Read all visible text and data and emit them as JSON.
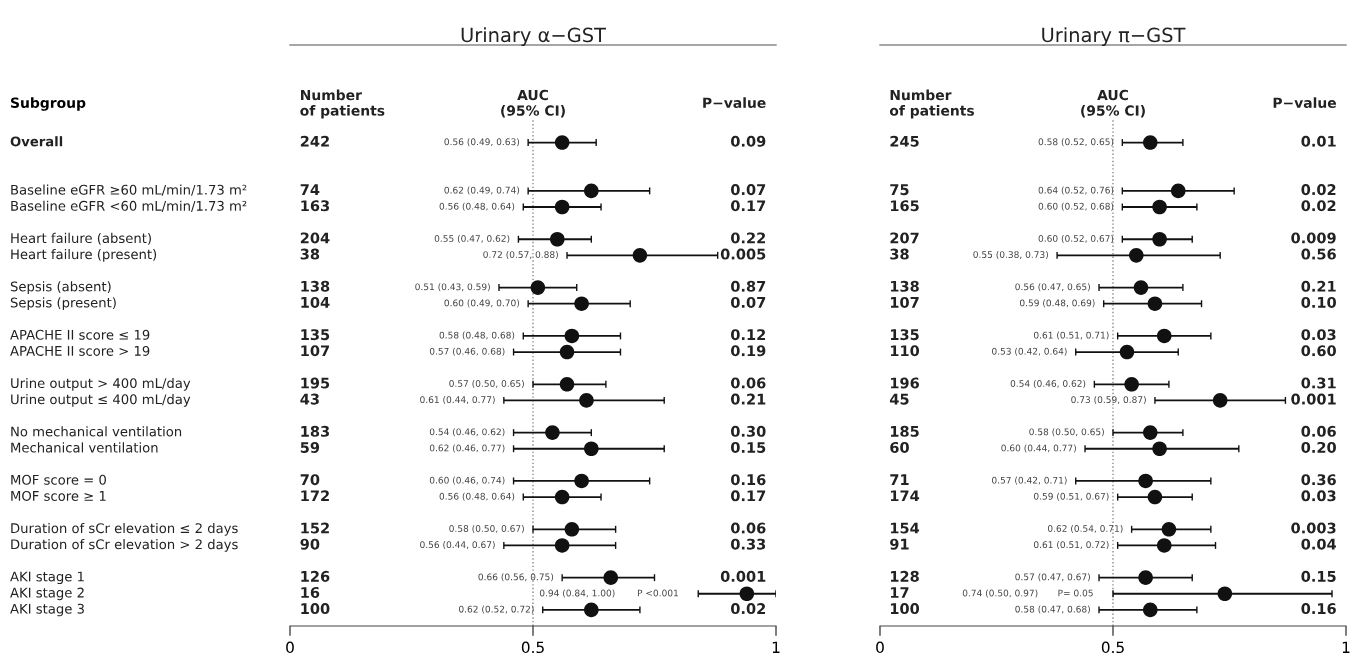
{
  "chart_data": [
    {
      "type": "scatter",
      "orientation": "horizontal",
      "title": "Urinary α−GST",
      "ylabel": "Subgroup",
      "marker": "circle",
      "categories": [
        "Overall",
        null,
        null,
        "Baseline eGFR ≥60 mL/min/1.73 m²",
        "Baseline eGFR <60 mL/min/1.73 m²",
        null,
        "Heart failure (absent)",
        "Heart failure (present)",
        null,
        "Sepsis (absent)",
        "Sepsis (present)",
        null,
        "APACHE II score ≤ 19",
        "APACHE II score > 19",
        null,
        "Urine output > 400 mL/day",
        "Urine output ≤ 400 mL/day",
        null,
        "No mechanical ventilation",
        "Mechanical ventilation",
        null,
        "MOF score = 0",
        "MOF score ≥ 1",
        null,
        "Duration of sCr elevation ≤ 2 days",
        "Duration of sCr elevation > 2 days",
        null,
        "AKI stage 1",
        "AKI stage 2",
        "AKI stage 3"
      ],
      "series": [
        {
          "color": "#111111",
          "values": [
            0.56,
            null,
            null,
            0.62,
            0.56,
            null,
            0.55,
            0.72,
            null,
            0.51,
            0.6,
            null,
            0.58,
            0.57,
            null,
            0.57,
            0.61,
            null,
            0.54,
            0.62,
            null,
            0.6,
            0.56,
            null,
            0.58,
            0.56,
            null,
            0.66,
            0.94,
            0.62
          ],
          "errors": [
            [
              0.49,
              0.63
            ],
            null,
            null,
            [
              0.49,
              0.74
            ],
            [
              0.48,
              0.64
            ],
            null,
            [
              0.47,
              0.62
            ],
            [
              0.57,
              0.88
            ],
            null,
            [
              0.43,
              0.59
            ],
            [
              0.49,
              0.7
            ],
            null,
            [
              0.48,
              0.68
            ],
            [
              0.46,
              0.68
            ],
            null,
            [
              0.5,
              0.65
            ],
            [
              0.44,
              0.77
            ],
            null,
            [
              0.46,
              0.62
            ],
            [
              0.46,
              0.77
            ],
            null,
            [
              0.46,
              0.74
            ],
            [
              0.48,
              0.64
            ],
            null,
            [
              0.5,
              0.67
            ],
            [
              0.44,
              0.67
            ],
            null,
            [
              0.56,
              0.75
            ],
            [
              0.84,
              1.0
            ],
            [
              0.52,
              0.72
            ]
          ]
        }
      ],
      "xlim": [
        0,
        1
      ],
      "xticks": [
        0,
        0.5,
        1
      ],
      "ref_lines": [
        {
          "axis": "x",
          "value": 0.5,
          "color": "#888888",
          "line_style": "dotted"
        }
      ],
      "annotations": [
        "Number\nof patients",
        "AUC\n(95% CI)",
        "P−value",
        "242",
        "74",
        "163",
        "204",
        "38",
        "138",
        "104",
        "135",
        "107",
        "195",
        "43",
        "183",
        "59",
        "70",
        "172",
        "152",
        "90",
        "126",
        "16",
        "100",
        "0.09",
        "0.07",
        "0.17",
        "0.22",
        "0.005",
        "0.87",
        "0.07",
        "0.12",
        "0.19",
        "0.06",
        "0.21",
        "0.30",
        "0.15",
        "0.16",
        "0.17",
        "0.06",
        "0.33",
        "0.001",
        "P <0.001",
        "0.02",
        "0.56 (0.49, 0.63)",
        "0.62 (0.49, 0.74)",
        "0.56 (0.48, 0.64)",
        "0.55 (0.47, 0.62)",
        "0.72 (0.57, 0.88)",
        "0.51 (0.43, 0.59)",
        "0.60 (0.49, 0.70)",
        "0.58 (0.48, 0.68)",
        "0.57 (0.46, 0.68)",
        "0.57 (0.50, 0.65)",
        "0.61 (0.44, 0.77)",
        "0.54 (0.46, 0.62)",
        "0.62 (0.46, 0.77)",
        "0.60 (0.46, 0.74)",
        "0.56 (0.48, 0.64)",
        "0.58 (0.50, 0.67)",
        "0.56 (0.44, 0.67)",
        "0.66 (0.56, 0.75)",
        "0.94 (0.84, 1.00)",
        "0.62 (0.52, 0.72)"
      ]
    },
    {
      "type": "scatter",
      "orientation": "horizontal",
      "title": "Urinary π−GST",
      "marker": "circle",
      "tick_labels": "x",
      "categories": [
        null,
        null,
        null,
        null,
        null,
        null,
        null,
        null,
        null,
        null,
        null,
        null,
        null,
        null,
        null,
        null,
        null,
        null,
        null,
        null,
        null,
        null,
        null,
        null,
        null,
        null,
        null,
        null,
        null,
        null
      ],
      "series": [
        {
          "color": "#111111",
          "values": [
            0.58,
            null,
            null,
            0.64,
            0.6,
            null,
            0.6,
            0.55,
            null,
            0.56,
            0.59,
            null,
            0.61,
            0.53,
            null,
            0.54,
            0.73,
            null,
            0.58,
            0.6,
            null,
            0.57,
            0.59,
            null,
            0.62,
            0.61,
            null,
            0.57,
            0.74,
            0.58
          ],
          "errors": [
            [
              0.52,
              0.65
            ],
            null,
            null,
            [
              0.52,
              0.76
            ],
            [
              0.52,
              0.68
            ],
            null,
            [
              0.52,
              0.67
            ],
            [
              0.38,
              0.73
            ],
            null,
            [
              0.47,
              0.65
            ],
            [
              0.48,
              0.69
            ],
            null,
            [
              0.51,
              0.71
            ],
            [
              0.42,
              0.64
            ],
            null,
            [
              0.46,
              0.62
            ],
            [
              0.59,
              0.87
            ],
            null,
            [
              0.5,
              0.65
            ],
            [
              0.44,
              0.77
            ],
            null,
            [
              0.42,
              0.71
            ],
            [
              0.51,
              0.67
            ],
            null,
            [
              0.54,
              0.71
            ],
            [
              0.51,
              0.72
            ],
            null,
            [
              0.47,
              0.67
            ],
            [
              0.5,
              0.97
            ],
            [
              0.47,
              0.68
            ]
          ]
        }
      ],
      "xlim": [
        0,
        1
      ],
      "xticks": [
        0,
        0.5,
        1
      ],
      "ref_lines": [
        {
          "axis": "x",
          "value": 0.5,
          "color": "#888888",
          "line_style": "dotted"
        }
      ],
      "annotations": [
        "Number\nof patients",
        "AUC\n(95% CI)",
        "P−value",
        "245",
        "75",
        "165",
        "207",
        "38",
        "138",
        "107",
        "135",
        "110",
        "196",
        "45",
        "185",
        "60",
        "71",
        "174",
        "154",
        "91",
        "128",
        "17",
        "100",
        "0.01",
        "0.02",
        "0.02",
        "0.009",
        "0.56",
        "0.21",
        "0.10",
        "0.03",
        "0.60",
        "0.31",
        "0.001",
        "0.06",
        "0.20",
        "0.36",
        "0.03",
        "0.003",
        "0.04",
        "0.15",
        "P= 0.05",
        "0.16",
        "0.58 (0.52, 0.65)",
        "0.64 (0.52, 0.76)",
        "0.60 (0.52, 0.68)",
        "0.60 (0.52, 0.67)",
        "0.55 (0.38, 0.73)",
        "0.56 (0.47, 0.65)",
        "0.59 (0.48, 0.69)",
        "0.61 (0.51, 0.71)",
        "0.53 (0.42, 0.64)",
        "0.54 (0.46, 0.62)",
        "0.73 (0.59, 0.87)",
        "0.58 (0.50, 0.65)",
        "0.60 (0.44, 0.77)",
        "0.57 (0.42, 0.71)",
        "0.59 (0.51, 0.67)",
        "0.62 (0.54, 0.71)",
        "0.61 (0.51, 0.72)",
        "0.57 (0.47, 0.67)",
        "0.74 (0.50, 0.97)",
        "0.58 (0.47, 0.68)"
      ]
    }
  ]
}
